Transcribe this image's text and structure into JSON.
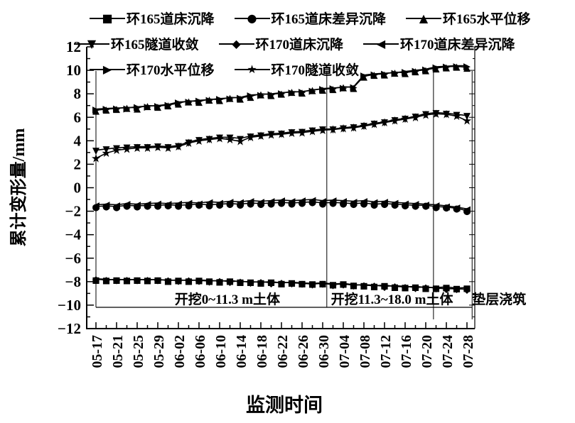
{
  "figure": {
    "background": "#ffffff",
    "foreground": "#000000"
  },
  "chart_data": {
    "type": "line",
    "title": "",
    "xlabel": "监测时间",
    "ylabel": "累计变形量/mm",
    "ylim": [
      -12,
      12
    ],
    "ytick_step": 2,
    "yticks": [
      12,
      10,
      8,
      6,
      4,
      2,
      0,
      -2,
      -4,
      -6,
      -8,
      -10,
      -12
    ],
    "x_tick_labels": [
      "05-17",
      "05-21",
      "05-25",
      "05-29",
      "06-02",
      "06-06",
      "06-10",
      "06-14",
      "06-18",
      "06-22",
      "06-26",
      "06-30",
      "07-04",
      "07-08",
      "07-12",
      "07-16",
      "07-20",
      "07-24",
      "07-28"
    ],
    "x_day_span": 72,
    "grid": false,
    "legend_position": "top",
    "days": [
      0,
      2,
      4,
      6,
      8,
      10,
      12,
      14,
      16,
      18,
      20,
      22,
      24,
      26,
      28,
      30,
      32,
      34,
      36,
      38,
      40,
      42,
      44,
      46,
      48,
      50,
      52,
      54,
      56,
      58,
      60,
      62,
      64,
      66,
      68,
      70,
      72
    ],
    "series": [
      {
        "name": "环165道床沉降",
        "marker": "■",
        "values": [
          -7.8,
          -7.85,
          -7.8,
          -7.85,
          -7.8,
          -7.85,
          -7.8,
          -7.9,
          -7.85,
          -7.9,
          -7.85,
          -7.9,
          -7.95,
          -7.9,
          -8.0,
          -8.0,
          -8.05,
          -8.0,
          -8.1,
          -8.05,
          -8.1,
          -8.15,
          -8.1,
          -8.2,
          -8.15,
          -8.25,
          -8.3,
          -8.35,
          -8.3,
          -8.4,
          -8.45,
          -8.4,
          -8.5,
          -8.5,
          -8.45,
          -8.55,
          -8.5
        ]
      },
      {
        "name": "环165道床差异沉降",
        "marker": "●",
        "values": [
          -1.6,
          -1.55,
          -1.6,
          -1.5,
          -1.55,
          -1.5,
          -1.5,
          -1.45,
          -1.5,
          -1.45,
          -1.4,
          -1.45,
          -1.4,
          -1.35,
          -1.4,
          -1.3,
          -1.35,
          -1.3,
          -1.25,
          -1.3,
          -1.25,
          -1.2,
          -1.3,
          -1.25,
          -1.3,
          -1.35,
          -1.3,
          -1.4,
          -1.35,
          -1.4,
          -1.45,
          -1.5,
          -1.5,
          -1.6,
          -1.65,
          -1.75,
          -1.95
        ]
      },
      {
        "name": "环165水平位移",
        "marker": "▲",
        "values": [
          6.6,
          6.7,
          6.75,
          6.85,
          6.8,
          7.0,
          6.95,
          7.05,
          7.2,
          7.4,
          7.35,
          7.55,
          7.5,
          7.7,
          7.65,
          7.8,
          8.0,
          7.95,
          8.05,
          8.2,
          8.15,
          8.35,
          8.4,
          8.45,
          8.6,
          8.55,
          9.5,
          9.65,
          9.7,
          9.85,
          9.8,
          9.95,
          10.05,
          10.2,
          10.3,
          10.35,
          10.25
        ]
      },
      {
        "name": "环165隧道收敛",
        "marker": "▼",
        "values": [
          3.2,
          3.3,
          3.4,
          3.45,
          3.5,
          3.5,
          3.55,
          3.5,
          3.6,
          3.9,
          4.1,
          4.2,
          4.3,
          4.3,
          4.2,
          4.4,
          4.5,
          4.6,
          4.65,
          4.75,
          4.8,
          4.9,
          5.0,
          5.0,
          5.1,
          5.2,
          5.3,
          5.5,
          5.6,
          5.8,
          5.9,
          6.1,
          6.3,
          6.4,
          6.35,
          6.25,
          6.15
        ]
      },
      {
        "name": "环170道床沉降",
        "marker": "◆",
        "values": [
          -7.75,
          -7.8,
          -7.85,
          -7.8,
          -7.85,
          -7.8,
          -7.85,
          -7.85,
          -7.9,
          -7.85,
          -7.9,
          -7.95,
          -7.9,
          -8.0,
          -7.95,
          -8.05,
          -8.0,
          -8.1,
          -8.05,
          -8.1,
          -8.15,
          -8.2,
          -8.15,
          -8.25,
          -8.2,
          -8.3,
          -8.25,
          -8.3,
          -8.4,
          -8.35,
          -8.4,
          -8.5,
          -8.45,
          -8.55,
          -8.6,
          -8.6,
          -8.65
        ]
      },
      {
        "name": "环170道床差异沉降",
        "marker": "◀",
        "values": [
          -1.45,
          -1.4,
          -1.45,
          -1.35,
          -1.4,
          -1.35,
          -1.3,
          -1.35,
          -1.3,
          -1.25,
          -1.3,
          -1.2,
          -1.25,
          -1.15,
          -1.2,
          -1.1,
          -1.15,
          -1.1,
          -1.05,
          -1.1,
          -1.05,
          -1.0,
          -1.1,
          -1.05,
          -1.1,
          -1.15,
          -1.1,
          -1.2,
          -1.15,
          -1.25,
          -1.3,
          -1.35,
          -1.4,
          -1.45,
          -1.55,
          -1.65,
          -1.8
        ]
      },
      {
        "name": "环170水平位移",
        "marker": "▶",
        "values": [
          6.7,
          6.75,
          6.8,
          6.8,
          6.9,
          6.95,
          7.0,
          7.1,
          7.3,
          7.35,
          7.45,
          7.5,
          7.6,
          7.65,
          7.7,
          7.9,
          7.95,
          8.0,
          8.1,
          8.15,
          8.2,
          8.3,
          8.45,
          8.5,
          8.55,
          8.6,
          9.6,
          9.7,
          9.75,
          9.8,
          9.9,
          10.0,
          10.1,
          10.3,
          10.35,
          10.4,
          10.4
        ]
      },
      {
        "name": "环170隧道收敛",
        "marker": "★",
        "values": [
          2.5,
          2.95,
          3.2,
          3.3,
          3.4,
          3.4,
          3.45,
          3.4,
          3.5,
          3.8,
          4.0,
          4.1,
          4.2,
          4.1,
          3.95,
          4.3,
          4.4,
          4.5,
          4.55,
          4.65,
          4.7,
          4.8,
          4.9,
          4.95,
          5.05,
          5.1,
          5.25,
          5.4,
          5.55,
          5.7,
          5.85,
          6.0,
          6.2,
          6.3,
          6.25,
          6.1,
          5.7
        ]
      }
    ],
    "annotations": [
      {
        "text": "开挖0~11.3 m土体",
        "day": 25.5,
        "anchor": "middle"
      },
      {
        "text": "开挖11.3~18.0 m土体",
        "day": 45.6,
        "anchor": "start"
      },
      {
        "text": "垫层浇筑",
        "day": 73.0,
        "anchor": "start"
      }
    ],
    "event_lines_days": [
      0,
      44.8,
      65.5,
      73
    ]
  }
}
